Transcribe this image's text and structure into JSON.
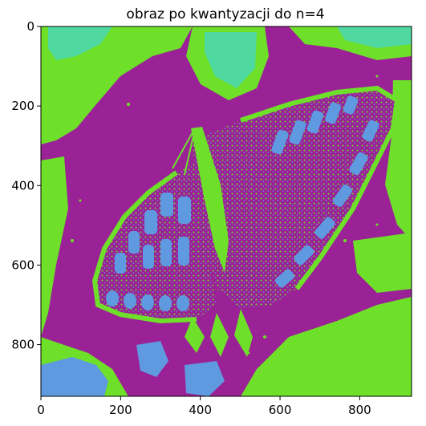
{
  "figure": {
    "title": "obraz po kwantyzacji do n=4",
    "xticks": [
      "0",
      "200",
      "400",
      "600",
      "800"
    ],
    "yticks": [
      "0",
      "200",
      "400",
      "600",
      "800"
    ],
    "xlim": [
      0,
      930
    ],
    "ylim": [
      930,
      0
    ]
  },
  "palette": {
    "magenta": "#9b2196",
    "green": "#6ee02a",
    "blue": "#5f9ae0",
    "mint": "#4fd8a0"
  },
  "image": {
    "description_colors": [
      "magenta",
      "green",
      "blue",
      "mint"
    ]
  }
}
